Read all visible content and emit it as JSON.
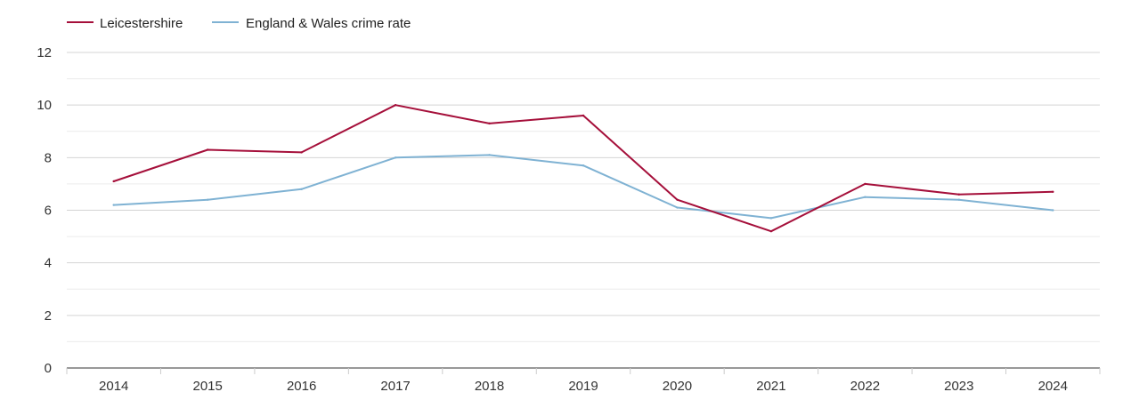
{
  "chart_data": {
    "type": "line",
    "title": "",
    "xlabel": "",
    "ylabel": "",
    "categories": [
      "2014",
      "2015",
      "2016",
      "2017",
      "2018",
      "2019",
      "2020",
      "2021",
      "2022",
      "2023",
      "2024"
    ],
    "ylim": [
      0,
      12
    ],
    "yticks": [
      "0",
      "2",
      "4",
      "6",
      "8",
      "10",
      "12"
    ],
    "grid": true,
    "legend_position": "top-left",
    "series": [
      {
        "name": "Leicestershire",
        "color": "#a50f3a",
        "values": [
          7.1,
          8.3,
          8.2,
          10.0,
          9.3,
          9.6,
          6.4,
          5.2,
          7.0,
          6.6,
          6.7
        ]
      },
      {
        "name": "England & Wales crime rate",
        "color": "#7fb2d3",
        "values": [
          6.2,
          6.4,
          6.8,
          8.0,
          8.1,
          7.7,
          6.1,
          5.7,
          6.5,
          6.4,
          6.0
        ]
      }
    ]
  }
}
